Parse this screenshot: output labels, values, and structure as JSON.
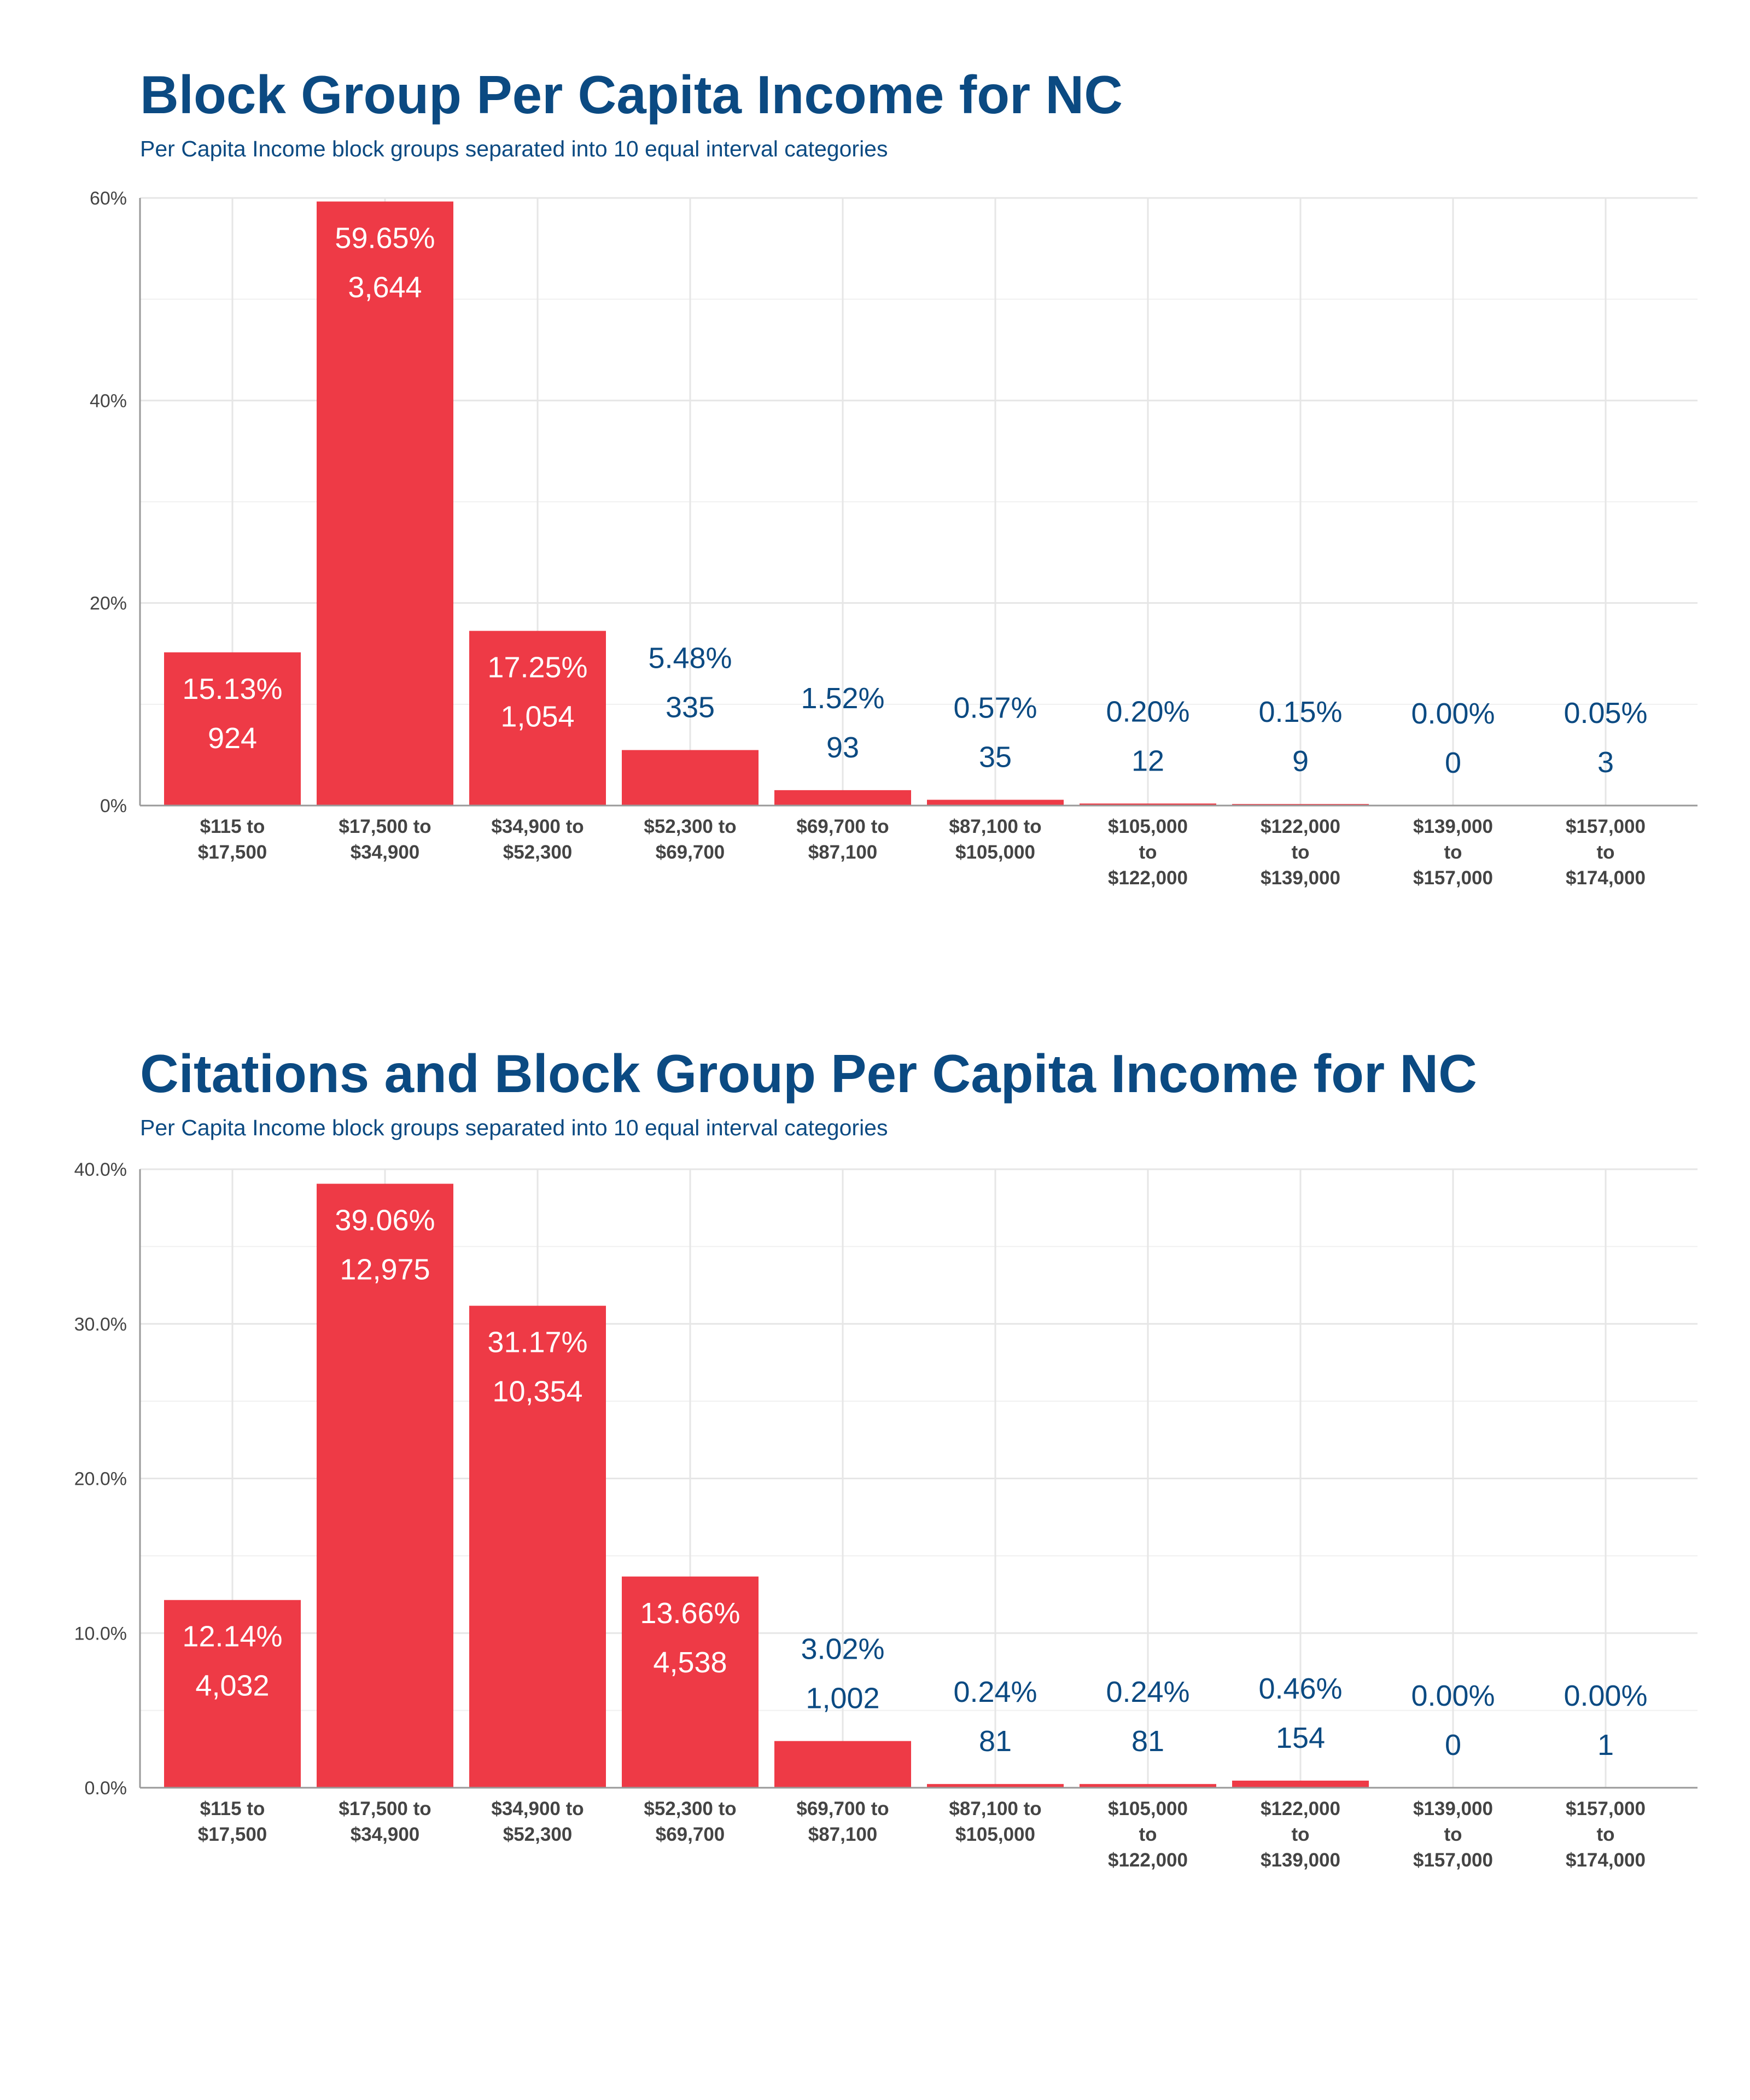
{
  "colors": {
    "bar": "#ee3a46",
    "title": "#0b4a82",
    "label_outside": "#0b4a82",
    "label_inside": "#ffffff",
    "grid": "#e6e6e6",
    "axis_text": "#444444"
  },
  "chart_data": [
    {
      "type": "bar",
      "title": "Block Group Per Capita Income for NC",
      "subtitle": "Per Capita Income block groups separated into 10 equal interval categories",
      "xlabel": "",
      "ylabel": "",
      "categories": [
        [
          "$115 to",
          "$17,500"
        ],
        [
          "$17,500 to",
          "$34,900"
        ],
        [
          "$34,900 to",
          "$52,300"
        ],
        [
          "$52,300 to",
          "$69,700"
        ],
        [
          "$69,700 to",
          "$87,100"
        ],
        [
          "$87,100 to",
          "$105,000"
        ],
        [
          "$105,000",
          "to",
          "$122,000"
        ],
        [
          "$122,000",
          "to",
          "$139,000"
        ],
        [
          "$139,000",
          "to",
          "$157,000"
        ],
        [
          "$157,000",
          "to",
          "$174,000"
        ]
      ],
      "values": [
        15.13,
        59.65,
        17.25,
        5.48,
        1.52,
        0.57,
        0.2,
        0.15,
        0.0,
        0.05
      ],
      "percent_labels": [
        "15.13%",
        "59.65%",
        "17.25%",
        "5.48%",
        "1.52%",
        "0.57%",
        "0.20%",
        "0.15%",
        "0.00%",
        "0.05%"
      ],
      "count_labels": [
        "924",
        "3,644",
        "1,054",
        "335",
        "93",
        "35",
        "12",
        "9",
        "0",
        "3"
      ],
      "ylim": [
        0,
        60
      ],
      "yticks": [
        0,
        20,
        40,
        60
      ],
      "ytick_labels": [
        "0%",
        "20%",
        "40%",
        "60%"
      ],
      "grid": true,
      "legend": "none"
    },
    {
      "type": "bar",
      "title": "Citations and Block Group Per Capita Income for NC",
      "subtitle": "Per Capita Income block groups separated into 10 equal interval categories",
      "xlabel": "",
      "ylabel": "",
      "categories": [
        [
          "$115 to",
          "$17,500"
        ],
        [
          "$17,500 to",
          "$34,900"
        ],
        [
          "$34,900 to",
          "$52,300"
        ],
        [
          "$52,300 to",
          "$69,700"
        ],
        [
          "$69,700 to",
          "$87,100"
        ],
        [
          "$87,100 to",
          "$105,000"
        ],
        [
          "$105,000",
          "to",
          "$122,000"
        ],
        [
          "$122,000",
          "to",
          "$139,000"
        ],
        [
          "$139,000",
          "to",
          "$157,000"
        ],
        [
          "$157,000",
          "to",
          "$174,000"
        ]
      ],
      "values": [
        12.14,
        39.06,
        31.17,
        13.66,
        3.02,
        0.24,
        0.24,
        0.46,
        0.0,
        0.0
      ],
      "percent_labels": [
        "12.14%",
        "39.06%",
        "31.17%",
        "13.66%",
        "3.02%",
        "0.24%",
        "0.24%",
        "0.46%",
        "0.00%",
        "0.00%"
      ],
      "count_labels": [
        "4,032",
        "12,975",
        "10,354",
        "4,538",
        "1,002",
        "81",
        "81",
        "154",
        "0",
        "1"
      ],
      "ylim": [
        0,
        40
      ],
      "yticks": [
        0,
        10,
        20,
        30,
        40
      ],
      "ytick_labels": [
        "0.0%",
        "10.0%",
        "20.0%",
        "30.0%",
        "40.0%"
      ],
      "grid": true,
      "legend": "none"
    }
  ]
}
